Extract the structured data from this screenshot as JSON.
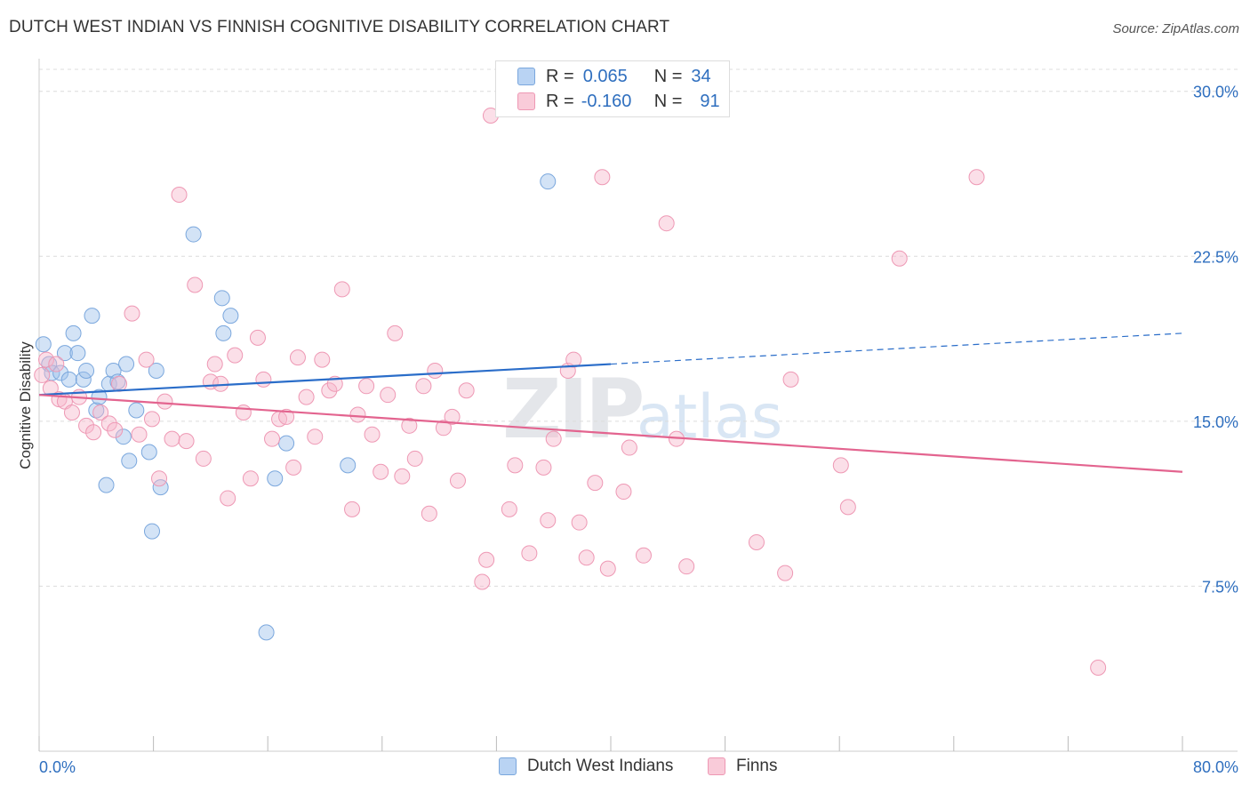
{
  "title": "DUTCH WEST INDIAN VS FINNISH COGNITIVE DISABILITY CORRELATION CHART",
  "source": "Source: ZipAtlas.com",
  "watermark": {
    "zip": "ZIP",
    "atlas": "atlas"
  },
  "legend": {
    "r_label": "R =",
    "n_label": "N =",
    "series": [
      {
        "r": "0.065",
        "n": "34"
      },
      {
        "r": "-0.160",
        "n": "91"
      }
    ]
  },
  "chart_data": {
    "type": "scatter",
    "title": "DUTCH WEST INDIAN VS FINNISH COGNITIVE DISABILITY CORRELATION CHART",
    "xlabel": "",
    "ylabel": "Cognitive Disability",
    "xlim": [
      0,
      80
    ],
    "ylim": [
      0,
      31
    ],
    "x_tick_labels": [
      "0.0%",
      "80.0%"
    ],
    "y_ticks": [
      7.5,
      15.0,
      22.5,
      30.0
    ],
    "y_tick_labels": [
      "7.5%",
      "15.0%",
      "22.5%",
      "30.0%"
    ],
    "grid": true,
    "series": [
      {
        "name": "Dutch West Indians",
        "color": "#9ec2ec",
        "stroke": "#7aa7dd",
        "line_color": "#2a6dc9",
        "trend": {
          "x0": 0,
          "y0": 16.2,
          "x1": 40,
          "y1": 17.6,
          "dashed_to_x": 80,
          "dashed_to_y": 19.0
        },
        "points": [
          [
            0.3,
            18.5
          ],
          [
            0.7,
            17.6
          ],
          [
            0.9,
            17.2
          ],
          [
            1.5,
            17.2
          ],
          [
            1.8,
            18.1
          ],
          [
            2.1,
            16.9
          ],
          [
            2.4,
            19.0
          ],
          [
            2.7,
            18.1
          ],
          [
            3.1,
            16.9
          ],
          [
            3.3,
            17.3
          ],
          [
            3.7,
            19.8
          ],
          [
            4.0,
            15.5
          ],
          [
            4.2,
            16.1
          ],
          [
            4.7,
            12.1
          ],
          [
            4.9,
            16.7
          ],
          [
            5.2,
            17.3
          ],
          [
            5.5,
            16.8
          ],
          [
            5.9,
            14.3
          ],
          [
            6.1,
            17.6
          ],
          [
            6.3,
            13.2
          ],
          [
            6.8,
            15.5
          ],
          [
            7.7,
            13.6
          ],
          [
            7.9,
            10.0
          ],
          [
            8.2,
            17.3
          ],
          [
            8.5,
            12.0
          ],
          [
            10.8,
            23.5
          ],
          [
            12.8,
            20.6
          ],
          [
            12.9,
            19.0
          ],
          [
            13.4,
            19.8
          ],
          [
            15.9,
            5.4
          ],
          [
            16.5,
            12.4
          ],
          [
            17.3,
            14.0
          ],
          [
            21.6,
            13.0
          ],
          [
            35.6,
            25.9
          ]
        ]
      },
      {
        "name": "Finns",
        "color": "#f6b9cc",
        "stroke": "#ee98b4",
        "line_color": "#e3648f",
        "trend": {
          "x0": 0,
          "y0": 16.2,
          "x1": 80,
          "y1": 12.7
        },
        "points": [
          [
            0.2,
            17.1
          ],
          [
            0.5,
            17.8
          ],
          [
            0.8,
            16.5
          ],
          [
            1.2,
            17.6
          ],
          [
            1.4,
            16.0
          ],
          [
            1.8,
            15.9
          ],
          [
            2.3,
            15.4
          ],
          [
            2.8,
            16.1
          ],
          [
            3.3,
            14.8
          ],
          [
            3.8,
            14.5
          ],
          [
            4.3,
            15.4
          ],
          [
            4.9,
            14.9
          ],
          [
            5.3,
            14.6
          ],
          [
            5.6,
            16.7
          ],
          [
            6.5,
            19.9
          ],
          [
            7.0,
            14.4
          ],
          [
            7.5,
            17.8
          ],
          [
            7.9,
            15.1
          ],
          [
            8.4,
            12.4
          ],
          [
            8.8,
            15.9
          ],
          [
            9.3,
            14.2
          ],
          [
            9.8,
            25.3
          ],
          [
            10.3,
            14.1
          ],
          [
            10.9,
            21.2
          ],
          [
            11.5,
            13.3
          ],
          [
            12.0,
            16.8
          ],
          [
            12.3,
            17.6
          ],
          [
            12.7,
            16.7
          ],
          [
            13.2,
            11.5
          ],
          [
            13.7,
            18.0
          ],
          [
            14.3,
            15.4
          ],
          [
            14.8,
            12.4
          ],
          [
            15.3,
            18.8
          ],
          [
            15.7,
            16.9
          ],
          [
            16.3,
            14.2
          ],
          [
            16.8,
            15.1
          ],
          [
            17.3,
            15.2
          ],
          [
            17.8,
            12.9
          ],
          [
            18.1,
            17.9
          ],
          [
            18.7,
            16.1
          ],
          [
            19.3,
            14.3
          ],
          [
            19.8,
            17.8
          ],
          [
            20.3,
            16.4
          ],
          [
            20.7,
            16.7
          ],
          [
            21.2,
            21.0
          ],
          [
            21.9,
            11.0
          ],
          [
            22.3,
            15.3
          ],
          [
            22.9,
            16.6
          ],
          [
            23.3,
            14.4
          ],
          [
            23.9,
            12.7
          ],
          [
            24.4,
            16.2
          ],
          [
            24.9,
            19.0
          ],
          [
            25.4,
            12.5
          ],
          [
            25.9,
            14.8
          ],
          [
            26.3,
            13.3
          ],
          [
            26.9,
            16.6
          ],
          [
            27.3,
            10.8
          ],
          [
            27.7,
            17.3
          ],
          [
            28.3,
            14.7
          ],
          [
            28.9,
            15.2
          ],
          [
            29.3,
            12.3
          ],
          [
            29.9,
            16.4
          ],
          [
            31.0,
            7.7
          ],
          [
            31.3,
            8.7
          ],
          [
            31.6,
            28.9
          ],
          [
            32.9,
            11.0
          ],
          [
            33.3,
            13.0
          ],
          [
            34.3,
            9.0
          ],
          [
            35.3,
            12.9
          ],
          [
            35.6,
            10.5
          ],
          [
            36.0,
            14.2
          ],
          [
            37.0,
            17.3
          ],
          [
            37.4,
            17.8
          ],
          [
            37.8,
            10.4
          ],
          [
            38.3,
            8.8
          ],
          [
            38.9,
            12.2
          ],
          [
            39.4,
            26.1
          ],
          [
            39.8,
            8.3
          ],
          [
            40.9,
            11.8
          ],
          [
            41.3,
            13.8
          ],
          [
            42.3,
            8.9
          ],
          [
            43.9,
            24.0
          ],
          [
            44.6,
            14.2
          ],
          [
            45.3,
            8.4
          ],
          [
            50.2,
            9.5
          ],
          [
            52.2,
            8.1
          ],
          [
            52.6,
            16.9
          ],
          [
            56.1,
            13.0
          ],
          [
            56.6,
            11.1
          ],
          [
            60.2,
            22.4
          ],
          [
            65.6,
            26.1
          ],
          [
            74.1,
            3.8
          ]
        ]
      }
    ]
  }
}
